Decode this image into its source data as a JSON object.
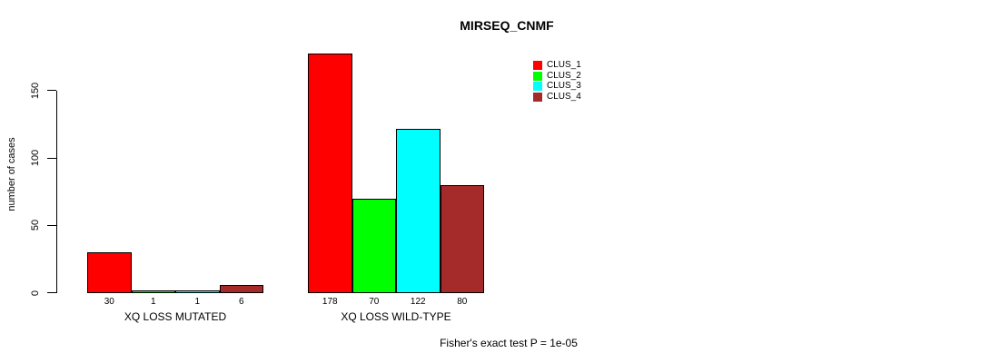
{
  "title": "MIRSEQ_CNMF",
  "chart_data": {
    "type": "bar",
    "title": "MIRSEQ_CNMF",
    "xlabel": "",
    "ylabel": "number of cases",
    "categories": [
      "XQ LOSS MUTATED",
      "XQ LOSS WILD-TYPE"
    ],
    "series": [
      {
        "name": "CLUS_1",
        "color": "#ff0000",
        "values": [
          30,
          178
        ]
      },
      {
        "name": "CLUS_2",
        "color": "#00ff00",
        "values": [
          1,
          70
        ]
      },
      {
        "name": "CLUS_3",
        "color": "#00ffff",
        "values": [
          1,
          122
        ]
      },
      {
        "name": "CLUS_4",
        "color": "#a52a2a",
        "values": [
          6,
          80
        ]
      }
    ],
    "yticks": [
      0,
      50,
      100,
      150
    ],
    "ylim": [
      0,
      178
    ],
    "grid": false,
    "legend_position": "top-right",
    "bar_value_labels": true,
    "annotation": "Fisher's exact test P = 1e-05"
  }
}
